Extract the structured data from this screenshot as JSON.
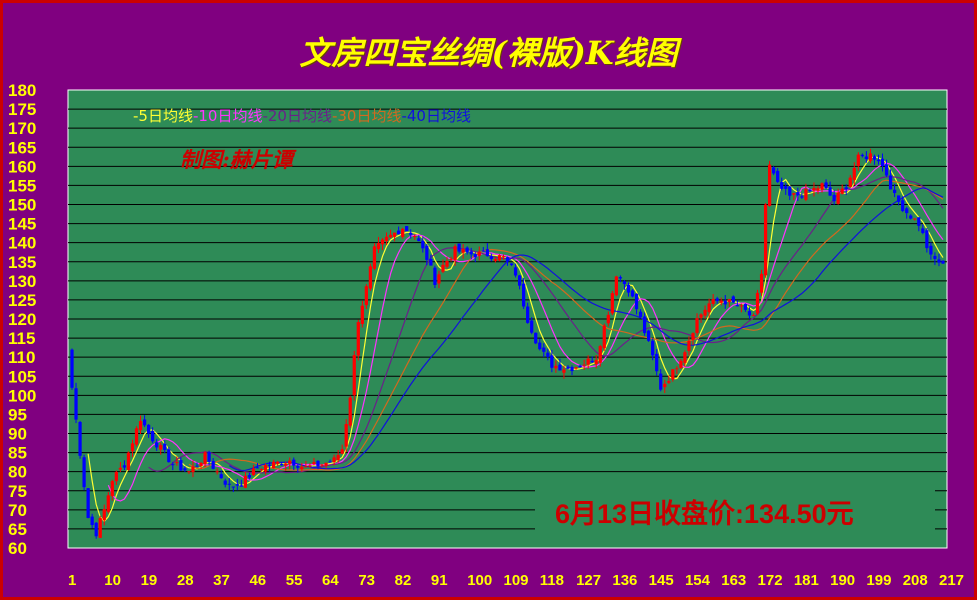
{
  "title": "文房四宝丝绸(裸版)K线图",
  "author_stamp": "制图:赫片谭",
  "close_note": "6月13日收盘价:134.50元",
  "colors": {
    "background": "#800080",
    "plot_bg": "#2e8b57",
    "border": "#cc0000",
    "text": "#ffff00",
    "up": "#ff0000",
    "down": "#0000ff"
  },
  "chart_data": {
    "type": "candlestick",
    "ylim": [
      60,
      180
    ],
    "y_ticks": [
      180,
      175,
      170,
      165,
      160,
      155,
      150,
      145,
      140,
      135,
      130,
      125,
      120,
      115,
      110,
      105,
      100,
      95,
      90,
      85,
      80,
      75,
      70,
      65,
      60
    ],
    "x_range": [
      1,
      217
    ],
    "x_ticks": [
      1,
      10,
      19,
      28,
      37,
      46,
      55,
      64,
      73,
      82,
      91,
      100,
      109,
      118,
      127,
      136,
      145,
      154,
      163,
      172,
      181,
      190,
      199,
      208,
      217
    ],
    "grid": "horizontal",
    "legend": [
      {
        "label": "-5日均线",
        "color": "#ffff33",
        "period": 5
      },
      {
        "label": "-10日均线",
        "color": "#ff33ff",
        "period": 10
      },
      {
        "label": "-20日均线",
        "color": "#6b1f8a",
        "period": 20
      },
      {
        "label": "-30日均线",
        "color": "#d2691e",
        "period": 30
      },
      {
        "label": "-40日均线",
        "color": "#1010dd",
        "period": 40
      }
    ],
    "legend_position": "top-left",
    "close_path": [
      [
        1,
        102
      ],
      [
        3,
        85
      ],
      [
        5,
        68
      ],
      [
        7,
        64
      ],
      [
        9,
        70
      ],
      [
        11,
        78
      ],
      [
        14,
        82
      ],
      [
        16,
        88
      ],
      [
        18,
        94
      ],
      [
        20,
        90
      ],
      [
        23,
        86
      ],
      [
        26,
        82
      ],
      [
        30,
        80
      ],
      [
        34,
        84
      ],
      [
        37,
        80
      ],
      [
        40,
        76
      ],
      [
        43,
        77
      ],
      [
        47,
        81
      ],
      [
        51,
        82
      ],
      [
        55,
        83
      ],
      [
        59,
        81
      ],
      [
        63,
        82
      ],
      [
        66,
        83
      ],
      [
        68,
        86
      ],
      [
        70,
        100
      ],
      [
        72,
        120
      ],
      [
        74,
        128
      ],
      [
        76,
        138
      ],
      [
        79,
        141
      ],
      [
        83,
        144
      ],
      [
        86,
        142
      ],
      [
        89,
        136
      ],
      [
        91,
        130
      ],
      [
        93,
        134
      ],
      [
        96,
        138
      ],
      [
        100,
        137
      ],
      [
        104,
        137
      ],
      [
        108,
        136
      ],
      [
        111,
        132
      ],
      [
        114,
        120
      ],
      [
        117,
        112
      ],
      [
        120,
        108
      ],
      [
        124,
        107
      ],
      [
        127,
        108
      ],
      [
        131,
        110
      ],
      [
        134,
        122
      ],
      [
        136,
        132
      ],
      [
        139,
        128
      ],
      [
        142,
        120
      ],
      [
        145,
        110
      ],
      [
        147,
        102
      ],
      [
        150,
        106
      ],
      [
        153,
        112
      ],
      [
        156,
        120
      ],
      [
        159,
        124
      ],
      [
        162,
        125
      ],
      [
        165,
        124
      ],
      [
        168,
        122
      ],
      [
        170,
        120
      ],
      [
        172,
        132
      ],
      [
        173,
        150
      ],
      [
        174,
        160
      ],
      [
        176,
        155
      ],
      [
        179,
        152
      ],
      [
        183,
        153
      ],
      [
        187,
        155
      ],
      [
        190,
        151
      ],
      [
        193,
        155
      ],
      [
        196,
        162
      ],
      [
        199,
        163
      ],
      [
        201,
        162
      ],
      [
        203,
        158
      ],
      [
        205,
        152
      ],
      [
        208,
        148
      ],
      [
        211,
        145
      ],
      [
        214,
        136
      ],
      [
        217,
        134.5
      ]
    ]
  }
}
